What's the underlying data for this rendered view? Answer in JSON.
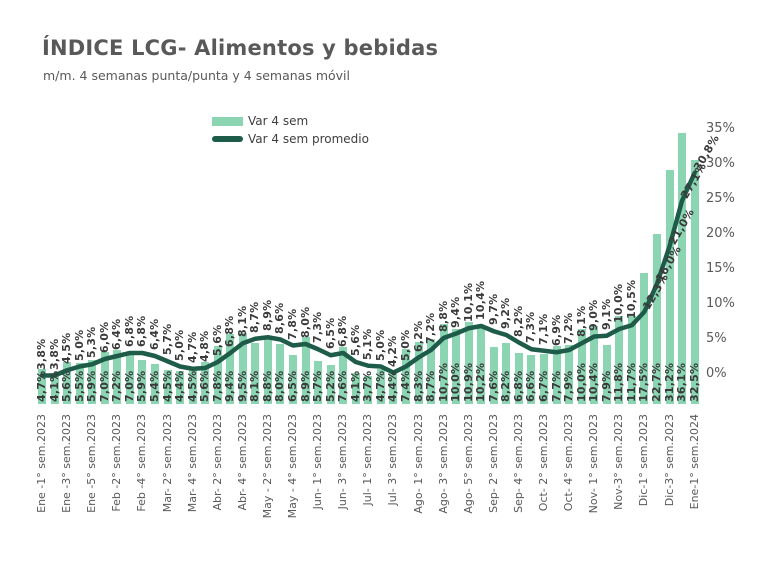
{
  "header": {
    "title": "ÍNDICE LCG- Alimentos y bebidas",
    "subtitle": "m/m. 4 semanas punta/punta y 4 semanas móvil"
  },
  "legend": {
    "items": [
      {
        "label": "Var 4 sem",
        "marker": "bar-swatch",
        "color": "#8bd5b2"
      },
      {
        "label": "Var 4 sem promedio",
        "marker": "line-swatch",
        "color": "#1e5c49"
      }
    ]
  },
  "colors": {
    "bar": "#8bd5b2",
    "line": "#1e5c49",
    "title_text": "#595959",
    "value_label_text": "#3a3a3a",
    "axis_text": "#595959",
    "background": "#ffffff"
  },
  "chart_data": {
    "type": "bar",
    "title": "ÍNDICE LCG- Alimentos y bebidas",
    "subtitle": "m/m. 4 semanas punta/punta y 4 semanas móvil",
    "legend_position": "top-center",
    "grid": false,
    "y_axis": {
      "side": "right",
      "min": 0,
      "max": 35,
      "step": 5,
      "ticks": [
        "0%",
        "5%",
        "10%",
        "15%",
        "20%",
        "25%",
        "30%",
        "35%"
      ]
    },
    "x_tick_every": 2,
    "x_labels": [
      "Ene -1° sem.2023",
      "Ene -3° sem.2023",
      "Ene -5° sem.2023",
      "Feb -2° sem.2023",
      "Feb -4° sem.2023",
      "Mar- 2° sem.2023",
      "Mar- 4° sem.2023",
      "Abr- 2° sem.2023",
      "Abr- 4° sem.2023",
      "May - 2° sem.2023",
      "May - 4° sem.2023",
      "Jun- 1° sem.2023",
      "Jun- 3° sem.2023",
      "Jul- 1° sem.2023",
      "Jul- 3° sem.2023",
      "Ago- 1° sem.2023",
      "Ago- 3° sem.2023",
      "Ago- 5° sem.2023",
      "Sep- 2° sem.2023",
      "Sep- 4° sem.2023",
      "Oct- 2° sem.2023",
      "Oct- 4° sem.2023",
      "Nov- 1° sem.2023",
      "Nov-3° sem.2023",
      "Dic-1° sem.2023",
      "Dic-3° sem.2023",
      "Ene-1° sem.2024"
    ],
    "series": [
      {
        "name": "Var 4 sem",
        "type": "bar",
        "values": [
          4.7,
          4.1,
          5.6,
          5.5,
          5.9,
          7.0,
          7.2,
          7.0,
          5.9,
          5.4,
          4.5,
          4.4,
          4.5,
          5.6,
          7.8,
          9.4,
          9.5,
          8.1,
          8.8,
          8.0,
          6.5,
          8.9,
          5.7,
          5.2,
          7.6,
          4.1,
          3.7,
          4.7,
          4.4,
          7.4,
          8.3,
          8.7,
          10.7,
          10.0,
          10.9,
          10.2,
          7.6,
          8.2,
          6.8,
          6.6,
          6.7,
          7.7,
          7.9,
          10.0,
          10.4,
          7.9,
          11.8,
          11.7,
          17.5,
          22.7,
          31.2,
          36.1,
          32.5
        ],
        "labels": [
          "4,7%",
          "4,1%",
          "5,6%",
          "5,5%",
          "5,9%",
          "7,0%",
          "7,2%",
          "7,0%",
          "5,9%",
          "5,4%",
          "4,5%",
          "4,4%",
          "4,5%",
          "5,6%",
          "7,8%",
          "9,4%",
          "9,5%",
          "8,1%",
          "8,8%",
          "8,0%",
          "6,5%",
          "8,9%",
          "5,7%",
          "5,2%",
          "7,6%",
          "4,1%",
          "3,7%",
          "4,7%",
          "4,4%",
          "7,4%",
          "8,3%",
          "8,7%",
          "10,7%",
          "10,0%",
          "10,9%",
          "10,2%",
          "7,6%",
          "8,2%",
          "6,8%",
          "6,6%",
          "6,7%",
          "7,7%",
          "7,9%",
          "10,0%",
          "10,4%",
          "7,9%",
          "11,8%",
          "11,7%",
          "17,5%",
          "22,7%",
          "31,2%",
          "36,1%",
          "32,5%"
        ]
      },
      {
        "name": "Var 4 sem promedio",
        "type": "line",
        "values": [
          3.8,
          3.8,
          4.5,
          5.0,
          5.3,
          6.0,
          6.4,
          6.8,
          6.8,
          6.4,
          5.7,
          5.0,
          4.7,
          4.8,
          5.6,
          6.8,
          8.1,
          8.7,
          8.9,
          8.6,
          7.8,
          8.0,
          7.3,
          6.5,
          6.8,
          5.6,
          5.1,
          5.0,
          4.2,
          5.0,
          6.2,
          7.2,
          8.8,
          9.4,
          10.1,
          10.4,
          9.7,
          9.2,
          8.2,
          7.3,
          7.1,
          6.9,
          7.2,
          8.1,
          9.0,
          9.1,
          10.0,
          10.5,
          12.3,
          16.0,
          21.0,
          27.1,
          30.8
        ],
        "labels": [
          "3,8%",
          "3,8%",
          "4,5%",
          "5,0%",
          "5,3%",
          "6,0%",
          "6,4%",
          "6,8%",
          "6,8%",
          "6,4%",
          "5,7%",
          "5,0%",
          "4,7%",
          "4,8%",
          "5,6%",
          "6,8%",
          "8,1%",
          "8,7%",
          "8,9%",
          "8,6%",
          "7,8%",
          "8,0%",
          "7,3%",
          "6,5%",
          "6,8%",
          "5,6%",
          "5,1%",
          "5,0%",
          "4,2%",
          "5,0%",
          "6,2%",
          "7,2%",
          "8,8%",
          "9,4%",
          "10,1%",
          "10,4%",
          "9,7%",
          "9,2%",
          "8,2%",
          "7,3%",
          "7,1%",
          "6,9%",
          "7,2%",
          "8,1%",
          "9,0%",
          "9,1%",
          "10,0%",
          "10,5%",
          "12,3%",
          "16,0%",
          "21,0%",
          "27,1%",
          "30,8%"
        ]
      }
    ]
  }
}
